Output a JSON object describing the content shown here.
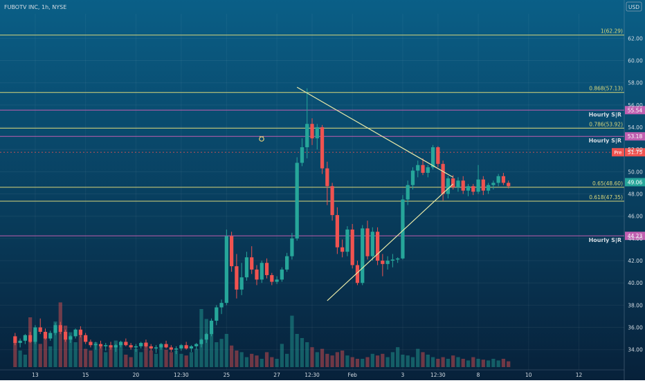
{
  "header": {
    "symbol_title": "FUBOTV INC, 1h, NYSE",
    "currency": "USD"
  },
  "colors": {
    "background_top": "#0a5f87",
    "background_bottom": "#07213a",
    "fib_line": "#d9d77a",
    "sr_line": "#c05fb0",
    "triangle": "#e9e9a8",
    "bull": "#26a69a",
    "bear": "#ef5350",
    "text": "#d6dde4",
    "label_bg": "#131722"
  },
  "chart_data": {
    "type": "candlestick",
    "title": "FUBOTV INC, 1h, NYSE",
    "ylabel": "USD",
    "ylim": [
      32.8,
      64.2
    ],
    "grid": true,
    "y_ticks": [
      {
        "value": 62,
        "label": "62.00"
      },
      {
        "value": 60,
        "label": "60.00"
      },
      {
        "value": 58,
        "label": "58.00"
      },
      {
        "value": 56,
        "label": "56.00"
      },
      {
        "value": 54,
        "label": "54.00"
      },
      {
        "value": 52,
        "label": "52.00"
      },
      {
        "value": 50,
        "label": "50.00"
      },
      {
        "value": 48,
        "label": "48.00"
      },
      {
        "value": 46,
        "label": "46.00"
      },
      {
        "value": 44,
        "label": "44.00"
      },
      {
        "value": 42,
        "label": "42.00"
      },
      {
        "value": 40,
        "label": "40.00"
      },
      {
        "value": 38,
        "label": "38.00"
      },
      {
        "value": 36,
        "label": "36.00"
      },
      {
        "value": 34,
        "label": "34.00"
      }
    ],
    "x_ticks": [
      {
        "label": "13",
        "bar": 4
      },
      {
        "label": "15",
        "bar": 14
      },
      {
        "label": "20",
        "bar": 24
      },
      {
        "label": "12:30",
        "bar": 33
      },
      {
        "label": "25",
        "bar": 42
      },
      {
        "label": "27",
        "bar": 52
      },
      {
        "label": "12:30",
        "bar": 59
      },
      {
        "label": "Feb",
        "bar": 67
      },
      {
        "label": "3",
        "bar": 77
      },
      {
        "label": "12:30",
        "bar": 84
      },
      {
        "label": "8",
        "bar": 92
      },
      {
        "label": "10",
        "bar": 102
      },
      {
        "label": "12",
        "bar": 112
      }
    ],
    "x_range_bars": [
      -3,
      121
    ],
    "candles": [
      [
        35.2,
        35.5,
        34.4,
        34.6
      ],
      [
        34.6,
        35.0,
        34.2,
        34.8
      ],
      [
        34.8,
        35.4,
        34.5,
        35.3
      ],
      [
        35.3,
        35.6,
        34.6,
        34.7
      ],
      [
        34.7,
        36.2,
        34.5,
        36.0
      ],
      [
        36.0,
        36.8,
        35.4,
        35.6
      ],
      [
        35.6,
        35.9,
        34.9,
        35.0
      ],
      [
        35.0,
        35.7,
        34.8,
        35.5
      ],
      [
        35.5,
        36.4,
        35.3,
        36.2
      ],
      [
        36.2,
        36.5,
        35.4,
        35.6
      ],
      [
        35.6,
        35.8,
        34.7,
        34.9
      ],
      [
        34.9,
        35.3,
        34.6,
        35.2
      ],
      [
        35.2,
        35.9,
        35.0,
        35.8
      ],
      [
        35.8,
        36.1,
        35.1,
        35.3
      ],
      [
        35.3,
        35.5,
        34.5,
        34.7
      ],
      [
        34.7,
        34.9,
        34.2,
        34.4
      ],
      [
        34.4,
        34.7,
        34.0,
        34.5
      ],
      [
        34.5,
        34.8,
        34.1,
        34.3
      ],
      [
        34.3,
        34.6,
        33.9,
        34.4
      ],
      [
        34.4,
        34.7,
        34.0,
        34.2
      ],
      [
        34.2,
        34.5,
        33.8,
        34.4
      ],
      [
        34.4,
        34.8,
        34.2,
        34.7
      ],
      [
        34.7,
        35.0,
        34.3,
        34.4
      ],
      [
        34.4,
        34.6,
        34.0,
        34.2
      ],
      [
        34.2,
        34.5,
        33.8,
        34.3
      ],
      [
        34.3,
        34.7,
        34.1,
        34.6
      ],
      [
        34.6,
        34.9,
        34.2,
        34.3
      ],
      [
        34.3,
        34.5,
        33.9,
        34.1
      ],
      [
        34.1,
        34.4,
        33.7,
        34.2
      ],
      [
        34.2,
        34.6,
        34.0,
        34.5
      ],
      [
        34.5,
        34.8,
        34.1,
        34.2
      ],
      [
        34.2,
        34.4,
        33.8,
        34.0
      ],
      [
        34.0,
        34.3,
        33.6,
        34.1
      ],
      [
        34.1,
        34.5,
        33.9,
        34.4
      ],
      [
        34.4,
        34.7,
        34.0,
        34.1
      ],
      [
        34.1,
        34.4,
        33.8,
        34.3
      ],
      [
        34.3,
        34.6,
        34.0,
        34.5
      ],
      [
        34.5,
        35.0,
        34.2,
        34.9
      ],
      [
        34.9,
        35.5,
        34.6,
        35.4
      ],
      [
        35.4,
        36.8,
        35.2,
        36.6
      ],
      [
        36.6,
        38.0,
        36.2,
        37.8
      ],
      [
        37.8,
        38.5,
        37.2,
        38.2
      ],
      [
        38.2,
        44.8,
        38.0,
        44.2
      ],
      [
        44.2,
        44.6,
        41.0,
        41.5
      ],
      [
        41.5,
        42.6,
        38.6,
        39.4
      ],
      [
        39.4,
        41.8,
        38.9,
        40.5
      ],
      [
        40.5,
        42.8,
        40.2,
        42.3
      ],
      [
        42.3,
        43.3,
        40.8,
        41.2
      ],
      [
        41.2,
        41.6,
        39.8,
        40.3
      ],
      [
        40.3,
        42.0,
        40.0,
        41.8
      ],
      [
        41.8,
        42.2,
        40.4,
        40.7
      ],
      [
        40.7,
        40.9,
        39.8,
        40.1
      ],
      [
        40.1,
        40.6,
        39.9,
        40.3
      ],
      [
        40.3,
        41.4,
        40.1,
        41.2
      ],
      [
        41.2,
        42.7,
        41.0,
        42.4
      ],
      [
        42.4,
        44.5,
        42.1,
        44.0
      ],
      [
        44.0,
        51.3,
        43.8,
        50.8
      ],
      [
        50.8,
        53.0,
        50.5,
        52.2
      ],
      [
        52.2,
        57.5,
        51.2,
        54.3
      ],
      [
        54.3,
        54.8,
        52.4,
        53.0
      ],
      [
        53.0,
        54.3,
        52.0,
        54.0
      ],
      [
        54.0,
        54.2,
        49.8,
        50.3
      ],
      [
        50.3,
        50.9,
        47.0,
        48.7
      ],
      [
        48.7,
        49.0,
        45.6,
        46.1
      ],
      [
        46.1,
        46.8,
        42.6,
        43.2
      ],
      [
        43.2,
        43.9,
        42.3,
        42.8
      ],
      [
        42.8,
        45.1,
        42.4,
        44.8
      ],
      [
        44.8,
        45.3,
        41.3,
        41.6
      ],
      [
        41.6,
        42.0,
        39.8,
        40.0
      ],
      [
        40.0,
        45.2,
        39.8,
        44.9
      ],
      [
        44.9,
        45.6,
        42.1,
        42.4
      ],
      [
        42.4,
        45.0,
        42.0,
        44.6
      ],
      [
        44.6,
        45.0,
        41.6,
        42.0
      ],
      [
        42.0,
        42.6,
        40.6,
        41.7
      ],
      [
        41.7,
        42.4,
        41.2,
        42.0
      ],
      [
        42.0,
        42.6,
        41.4,
        42.1
      ],
      [
        42.1,
        42.3,
        41.8,
        42.2
      ],
      [
        42.2,
        47.9,
        42.1,
        47.5
      ],
      [
        47.5,
        49.2,
        47.0,
        48.8
      ],
      [
        48.8,
        50.4,
        48.4,
        50.1
      ],
      [
        50.1,
        51.0,
        49.5,
        50.6
      ],
      [
        50.6,
        51.2,
        49.7,
        49.9
      ],
      [
        49.9,
        50.6,
        49.5,
        50.4
      ],
      [
        50.4,
        52.4,
        50.2,
        52.2
      ],
      [
        52.2,
        52.3,
        50.4,
        50.7
      ],
      [
        50.7,
        51.0,
        47.4,
        48.0
      ],
      [
        48.0,
        49.6,
        47.6,
        49.4
      ],
      [
        49.4,
        49.7,
        48.4,
        48.6
      ],
      [
        48.6,
        49.5,
        48.2,
        49.2
      ],
      [
        49.2,
        49.6,
        48.0,
        48.3
      ],
      [
        48.3,
        48.9,
        47.8,
        48.7
      ],
      [
        48.7,
        48.9,
        47.9,
        48.2
      ],
      [
        48.2,
        50.6,
        48.0,
        49.3
      ],
      [
        49.3,
        49.6,
        47.9,
        48.3
      ],
      [
        48.3,
        49.0,
        48.0,
        48.8
      ],
      [
        48.8,
        49.2,
        48.4,
        49.0
      ],
      [
        49.0,
        49.8,
        48.7,
        49.6
      ],
      [
        49.6,
        49.9,
        48.8,
        49.0
      ],
      [
        49.0,
        49.2,
        48.5,
        48.7
      ]
    ],
    "volumes": [
      0.3,
      0.2,
      0.15,
      0.6,
      0.45,
      0.28,
      0.35,
      0.25,
      0.55,
      0.78,
      0.5,
      0.42,
      0.3,
      0.38,
      0.22,
      0.2,
      0.3,
      0.25,
      0.18,
      0.24,
      0.32,
      0.27,
      0.15,
      0.12,
      0.22,
      0.18,
      0.3,
      0.2,
      0.16,
      0.24,
      0.21,
      0.18,
      0.2,
      0.16,
      0.14,
      0.18,
      0.22,
      0.7,
      0.58,
      0.46,
      0.3,
      0.34,
      0.4,
      0.26,
      0.2,
      0.18,
      0.12,
      0.16,
      0.14,
      0.1,
      0.18,
      0.12,
      0.1,
      0.28,
      0.16,
      0.62,
      0.4,
      0.35,
      0.3,
      0.24,
      0.18,
      0.22,
      0.16,
      0.14,
      0.18,
      0.2,
      0.14,
      0.12,
      0.1,
      0.1,
      0.12,
      0.16,
      0.14,
      0.16,
      0.12,
      0.18,
      0.24,
      0.15,
      0.14,
      0.12,
      0.22,
      0.18,
      0.15,
      0.12,
      0.1,
      0.12,
      0.1,
      0.14,
      0.12,
      0.1,
      0.08,
      0.12,
      0.1,
      0.09,
      0.08,
      0.1,
      0.08,
      0.1,
      0.07
    ],
    "fib_levels": [
      {
        "label": "1(62.29)",
        "value": 62.29
      },
      {
        "label": "0.868(57.13)",
        "value": 57.13
      },
      {
        "label": "0.786(53.92)",
        "value": 53.92
      },
      {
        "label": "0.65(48.60)",
        "value": 48.6
      },
      {
        "label": "0.618(47.35)",
        "value": 47.35
      }
    ],
    "sr_levels": [
      {
        "label": "Hourly S|R",
        "value": 55.54
      },
      {
        "label": "Hourly S|R",
        "value": 53.18
      },
      {
        "label": "Hourly S|R",
        "value": 44.23
      }
    ],
    "price_labels": [
      {
        "text": "55.54",
        "value": 55.54,
        "color": "#c05fb0"
      },
      {
        "text": "53.18",
        "value": 53.18,
        "color": "#c05fb0"
      },
      {
        "text": "51.75",
        "value": 51.75,
        "color": "#ef5350",
        "tag": "Pre"
      },
      {
        "text": "49.06",
        "value": 49.06,
        "color": "#26a69a"
      },
      {
        "text": "44.23",
        "value": 44.23,
        "color": "#c05fb0"
      }
    ],
    "triangle": {
      "upper": [
        [
          56,
          57.6
        ],
        [
          87,
          49.5
        ]
      ],
      "lower": [
        [
          62,
          38.4
        ],
        [
          87,
          48.9
        ]
      ]
    },
    "pre_market_line": 51.75
  }
}
